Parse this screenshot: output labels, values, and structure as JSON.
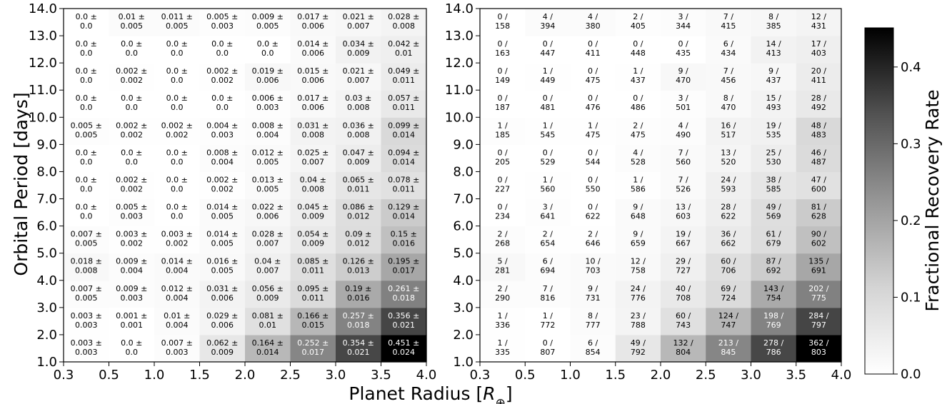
{
  "chart_data": [
    {
      "type": "heatmap",
      "panel": "left",
      "cell_text": "rate ± error",
      "x_edges": [
        0.3,
        0.5,
        1.0,
        1.5,
        2.0,
        2.5,
        3.0,
        3.5,
        4.0
      ],
      "y_edges": [
        1.0,
        2.0,
        3.0,
        4.0,
        5.0,
        6.0,
        7.0,
        8.0,
        9.0,
        10.0,
        11.0,
        12.0,
        13.0,
        14.0
      ],
      "x_ticks": [
        "0.3",
        "0.5",
        "1.0",
        "1.5",
        "2.0",
        "2.5",
        "3.0",
        "3.5",
        "4.0"
      ],
      "y_ticks": [
        "1.0",
        "2.0",
        "3.0",
        "4.0",
        "5.0",
        "6.0",
        "7.0",
        "8.0",
        "9.0",
        "10.0",
        "11.0",
        "12.0",
        "13.0",
        "14.0"
      ],
      "ylabel": "Orbital Period [days]",
      "rows": [
        {
          "rate": [
            "0.003",
            "0.0",
            "0.007",
            "0.062",
            "0.164",
            "0.252",
            "0.354",
            "0.451"
          ],
          "err": [
            "0.003",
            "0.0",
            "0.003",
            "0.009",
            "0.014",
            "0.017",
            "0.021",
            "0.024"
          ]
        },
        {
          "rate": [
            "0.003",
            "0.001",
            "0.01",
            "0.029",
            "0.081",
            "0.166",
            "0.257",
            "0.356"
          ],
          "err": [
            "0.003",
            "0.001",
            "0.004",
            "0.006",
            "0.01",
            "0.015",
            "0.018",
            "0.021"
          ]
        },
        {
          "rate": [
            "0.007",
            "0.009",
            "0.012",
            "0.031",
            "0.056",
            "0.095",
            "0.19",
            "0.261"
          ],
          "err": [
            "0.005",
            "0.003",
            "0.004",
            "0.006",
            "0.009",
            "0.011",
            "0.016",
            "0.018"
          ]
        },
        {
          "rate": [
            "0.018",
            "0.009",
            "0.014",
            "0.016",
            "0.04",
            "0.085",
            "0.126",
            "0.195"
          ],
          "err": [
            "0.008",
            "0.004",
            "0.004",
            "0.005",
            "0.007",
            "0.011",
            "0.013",
            "0.017"
          ]
        },
        {
          "rate": [
            "0.007",
            "0.003",
            "0.003",
            "0.014",
            "0.028",
            "0.054",
            "0.09",
            "0.15"
          ],
          "err": [
            "0.005",
            "0.002",
            "0.002",
            "0.005",
            "0.007",
            "0.009",
            "0.012",
            "0.016"
          ]
        },
        {
          "rate": [
            "0.0",
            "0.005",
            "0.0",
            "0.014",
            "0.022",
            "0.045",
            "0.086",
            "0.129"
          ],
          "err": [
            "0.0",
            "0.003",
            "0.0",
            "0.005",
            "0.006",
            "0.009",
            "0.012",
            "0.014"
          ]
        },
        {
          "rate": [
            "0.0",
            "0.002",
            "0.0",
            "0.002",
            "0.013",
            "0.04",
            "0.065",
            "0.078"
          ],
          "err": [
            "0.0",
            "0.002",
            "0.0",
            "0.002",
            "0.005",
            "0.008",
            "0.011",
            "0.011"
          ]
        },
        {
          "rate": [
            "0.0",
            "0.0",
            "0.0",
            "0.008",
            "0.012",
            "0.025",
            "0.047",
            "0.094"
          ],
          "err": [
            "0.0",
            "0.0",
            "0.0",
            "0.004",
            "0.005",
            "0.007",
            "0.009",
            "0.014"
          ]
        },
        {
          "rate": [
            "0.005",
            "0.002",
            "0.002",
            "0.004",
            "0.008",
            "0.031",
            "0.036",
            "0.099"
          ],
          "err": [
            "0.005",
            "0.002",
            "0.002",
            "0.003",
            "0.004",
            "0.008",
            "0.008",
            "0.014"
          ]
        },
        {
          "rate": [
            "0.0",
            "0.0",
            "0.0",
            "0.0",
            "0.006",
            "0.017",
            "0.03",
            "0.057"
          ],
          "err": [
            "0.0",
            "0.0",
            "0.0",
            "0.0",
            "0.003",
            "0.006",
            "0.008",
            "0.011"
          ]
        },
        {
          "rate": [
            "0.0",
            "0.002",
            "0.0",
            "0.002",
            "0.019",
            "0.015",
            "0.021",
            "0.049"
          ],
          "err": [
            "0.0",
            "0.002",
            "0.0",
            "0.002",
            "0.006",
            "0.006",
            "0.007",
            "0.011"
          ]
        },
        {
          "rate": [
            "0.0",
            "0.0",
            "0.0",
            "0.0",
            "0.0",
            "0.014",
            "0.034",
            "0.042"
          ],
          "err": [
            "0.0",
            "0.0",
            "0.0",
            "0.0",
            "0.0",
            "0.006",
            "0.009",
            "0.01"
          ]
        },
        {
          "rate": [
            "0.0",
            "0.01",
            "0.011",
            "0.005",
            "0.009",
            "0.017",
            "0.021",
            "0.028"
          ],
          "err": [
            "0.0",
            "0.005",
            "0.005",
            "0.003",
            "0.005",
            "0.006",
            "0.007",
            "0.008"
          ]
        }
      ]
    },
    {
      "type": "heatmap",
      "panel": "right",
      "cell_text": "recovered / injected",
      "x_edges": [
        0.3,
        0.5,
        1.0,
        1.5,
        2.0,
        2.5,
        3.0,
        3.5,
        4.0
      ],
      "y_edges": [
        1.0,
        2.0,
        3.0,
        4.0,
        5.0,
        6.0,
        7.0,
        8.0,
        9.0,
        10.0,
        11.0,
        12.0,
        13.0,
        14.0
      ],
      "x_ticks": [
        "0.3",
        "0.5",
        "1.0",
        "1.5",
        "2.0",
        "2.5",
        "3.0",
        "3.5",
        "4.0"
      ],
      "y_ticks": [
        "1.0",
        "2.0",
        "3.0",
        "4.0",
        "5.0",
        "6.0",
        "7.0",
        "8.0",
        "9.0",
        "10.0",
        "11.0",
        "12.0",
        "13.0",
        "14.0"
      ],
      "rows": [
        {
          "rec": [
            "1",
            "0",
            "6",
            "49",
            "132",
            "213",
            "278",
            "362"
          ],
          "tot": [
            "335",
            "807",
            "854",
            "792",
            "804",
            "845",
            "786",
            "803"
          ]
        },
        {
          "rec": [
            "1",
            "1",
            "8",
            "23",
            "60",
            "124",
            "198",
            "284"
          ],
          "tot": [
            "336",
            "772",
            "777",
            "788",
            "743",
            "747",
            "769",
            "797"
          ]
        },
        {
          "rec": [
            "2",
            "7",
            "9",
            "24",
            "40",
            "69",
            "143",
            "202"
          ],
          "tot": [
            "290",
            "816",
            "731",
            "776",
            "708",
            "724",
            "754",
            "775"
          ]
        },
        {
          "rec": [
            "5",
            "6",
            "10",
            "12",
            "29",
            "60",
            "87",
            "135"
          ],
          "tot": [
            "281",
            "694",
            "703",
            "758",
            "727",
            "706",
            "692",
            "691"
          ]
        },
        {
          "rec": [
            "2",
            "2",
            "2",
            "9",
            "19",
            "36",
            "61",
            "90"
          ],
          "tot": [
            "268",
            "654",
            "646",
            "659",
            "667",
            "662",
            "679",
            "602"
          ]
        },
        {
          "rec": [
            "0",
            "3",
            "0",
            "9",
            "13",
            "28",
            "49",
            "81"
          ],
          "tot": [
            "234",
            "641",
            "622",
            "648",
            "603",
            "622",
            "569",
            "628"
          ]
        },
        {
          "rec": [
            "0",
            "1",
            "0",
            "1",
            "7",
            "24",
            "38",
            "47"
          ],
          "tot": [
            "227",
            "560",
            "550",
            "586",
            "526",
            "593",
            "585",
            "600"
          ]
        },
        {
          "rec": [
            "0",
            "0",
            "0",
            "4",
            "7",
            "13",
            "25",
            "46"
          ],
          "tot": [
            "205",
            "529",
            "544",
            "528",
            "560",
            "520",
            "530",
            "487"
          ]
        },
        {
          "rec": [
            "1",
            "1",
            "1",
            "2",
            "4",
            "16",
            "19",
            "48"
          ],
          "tot": [
            "185",
            "545",
            "475",
            "475",
            "490",
            "517",
            "535",
            "483"
          ]
        },
        {
          "rec": [
            "0",
            "0",
            "0",
            "0",
            "3",
            "8",
            "15",
            "28"
          ],
          "tot": [
            "187",
            "481",
            "476",
            "486",
            "501",
            "470",
            "493",
            "492"
          ]
        },
        {
          "rec": [
            "0",
            "1",
            "0",
            "1",
            "9",
            "7",
            "9",
            "20"
          ],
          "tot": [
            "149",
            "449",
            "475",
            "437",
            "470",
            "456",
            "437",
            "411"
          ]
        },
        {
          "rec": [
            "0",
            "0",
            "0",
            "0",
            "0",
            "6",
            "14",
            "17"
          ],
          "tot": [
            "163",
            "447",
            "411",
            "448",
            "435",
            "434",
            "413",
            "403"
          ]
        },
        {
          "rec": [
            "0",
            "4",
            "4",
            "2",
            "3",
            "7",
            "8",
            "12"
          ],
          "tot": [
            "158",
            "394",
            "380",
            "405",
            "344",
            "415",
            "385",
            "431"
          ]
        }
      ]
    }
  ],
  "shared_xlabel": "Planet Radius [R⊕]",
  "colorbar": {
    "label": "Fractional Recovery Rate",
    "range": [
      0.0,
      0.451
    ],
    "ticks": [
      "0.0",
      "0.1",
      "0.2",
      "0.3",
      "0.4"
    ],
    "tick_values": [
      0.0,
      0.1,
      0.2,
      0.3,
      0.4
    ],
    "colormap": "Greys",
    "low_color": "#ffffff",
    "high_color": "#000000"
  }
}
